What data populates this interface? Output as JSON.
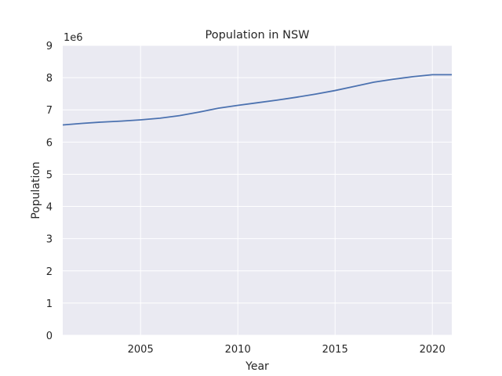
{
  "chart_data": {
    "type": "line",
    "title": "Population in NSW",
    "xlabel": "Year",
    "ylabel": "Population",
    "y_offset_label": "1e6",
    "xlim": [
      2001,
      2021
    ],
    "ylim": [
      0,
      9000000
    ],
    "xticks": [
      2005,
      2010,
      2015,
      2020
    ],
    "yticks": [
      0,
      1000000,
      2000000,
      3000000,
      4000000,
      5000000,
      6000000,
      7000000,
      8000000,
      9000000
    ],
    "ytick_labels": [
      "0",
      "1",
      "2",
      "3",
      "4",
      "5",
      "6",
      "7",
      "8",
      "9"
    ],
    "grid": true,
    "line_color": "#4c72b0",
    "x": [
      2001,
      2002,
      2003,
      2004,
      2005,
      2006,
      2007,
      2008,
      2009,
      2010,
      2011,
      2012,
      2013,
      2014,
      2015,
      2016,
      2017,
      2018,
      2019,
      2020,
      2021
    ],
    "values": [
      6530000,
      6580000,
      6620000,
      6650000,
      6690000,
      6740000,
      6820000,
      6930000,
      7050000,
      7140000,
      7220000,
      7300000,
      7390000,
      7490000,
      7600000,
      7730000,
      7860000,
      7950000,
      8030000,
      8090000,
      8090000
    ]
  }
}
